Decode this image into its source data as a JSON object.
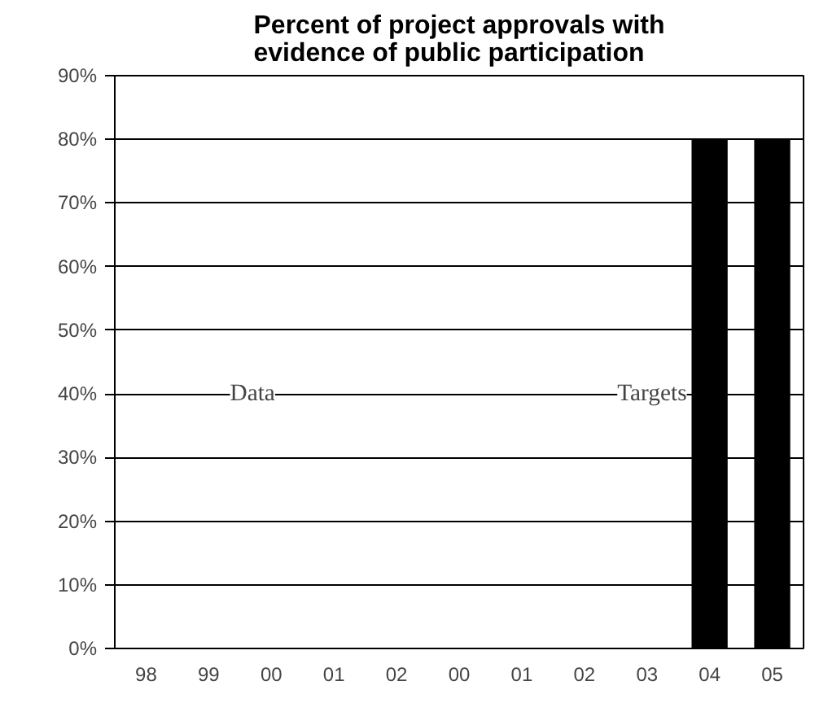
{
  "chart_data": {
    "type": "bar",
    "title": "Percent of project approvals with\nevidence of public participation",
    "categories": [
      "98",
      "99",
      "00",
      "01",
      "02",
      "00",
      "01",
      "02",
      "03",
      "04",
      "05"
    ],
    "values": [
      null,
      null,
      null,
      null,
      null,
      null,
      null,
      null,
      null,
      80,
      80
    ],
    "color": "#000000",
    "ylim": [
      0,
      90
    ],
    "yticks": [
      {
        "value": 0,
        "label": "0%"
      },
      {
        "value": 10,
        "label": "10%"
      },
      {
        "value": 20,
        "label": "20%"
      },
      {
        "value": 30,
        "label": "30%"
      },
      {
        "value": 40,
        "label": "40%"
      },
      {
        "value": 50,
        "label": "50%"
      },
      {
        "value": 60,
        "label": "60%"
      },
      {
        "value": 70,
        "label": "70%"
      },
      {
        "value": 80,
        "label": "80%"
      },
      {
        "value": 90,
        "label": "90%"
      }
    ],
    "grid": "y",
    "annotations": [
      "Data",
      "Targets"
    ]
  }
}
